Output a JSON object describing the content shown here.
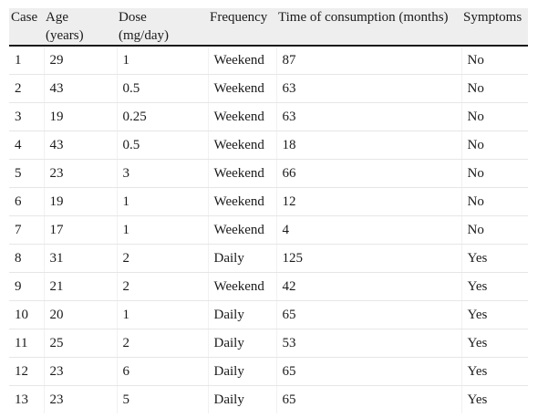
{
  "table": {
    "headers": {
      "case": "Case",
      "age_line1": "Age",
      "age_line2": "(years)",
      "dose_line1": "Dose",
      "dose_line2": "(mg/day)",
      "frequency": "Frequency",
      "time": "Time of consumption (months)",
      "symptoms": "Symptoms"
    },
    "rows": [
      [
        "1",
        "29",
        "1",
        "Weekend",
        "87",
        "No"
      ],
      [
        "2",
        "43",
        "0.5",
        "Weekend",
        "63",
        "No"
      ],
      [
        "3",
        "19",
        "0.25",
        "Weekend",
        "63",
        "No"
      ],
      [
        "4",
        "43",
        "0.5",
        "Weekend",
        "18",
        "No"
      ],
      [
        "5",
        "23",
        "3",
        "Weekend",
        "66",
        "No"
      ],
      [
        "6",
        "19",
        "1",
        "Weekend",
        "12",
        "No"
      ],
      [
        "7",
        "17",
        "1",
        "Weekend",
        "4",
        "No"
      ],
      [
        "8",
        "31",
        "2",
        "Daily",
        "125",
        "Yes"
      ],
      [
        "9",
        "21",
        "2",
        "Weekend",
        "42",
        "Yes"
      ],
      [
        "10",
        "20",
        "1",
        "Daily",
        "65",
        "Yes"
      ],
      [
        "11",
        "25",
        "2",
        "Daily",
        "53",
        "Yes"
      ],
      [
        "12",
        "23",
        "6",
        "Daily",
        "65",
        "Yes"
      ],
      [
        "13",
        "23",
        "5",
        "Daily",
        "65",
        "Yes"
      ]
    ]
  }
}
